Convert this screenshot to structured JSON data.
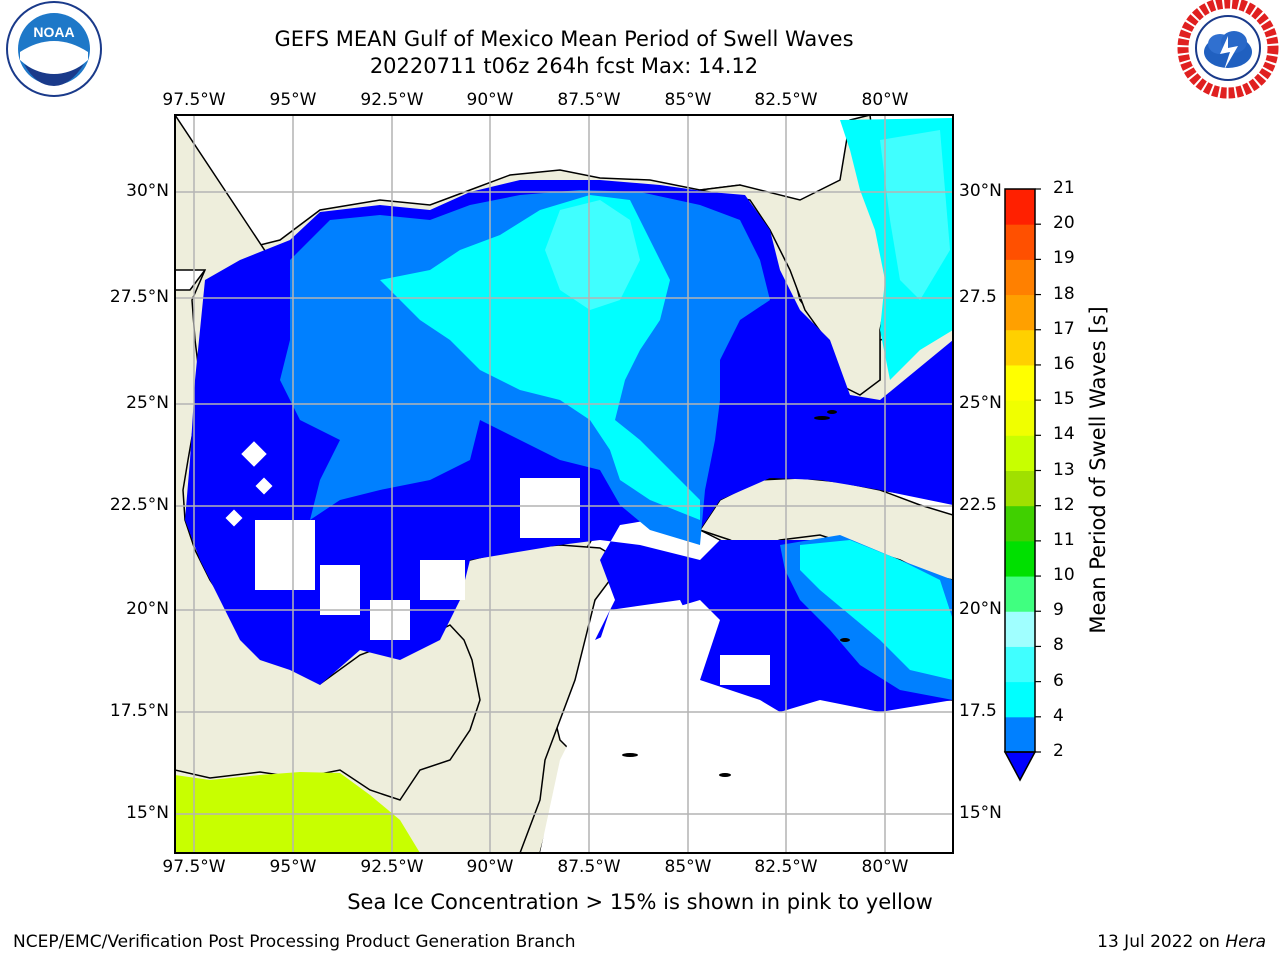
{
  "header": {
    "title_line1": "GEFS MEAN Gulf of Mexico Mean Period of Swell Waves",
    "title_line2": "20220711 t06z 264h fcst   Max: 14.12"
  },
  "logos": {
    "left": {
      "name": "noaa-logo",
      "text": "NOAA",
      "ring_text": "NATIONAL OCEANIC AND ATMOSPHERIC ADMINISTRATION · U.S. DEPARTMENT OF COMMERCE"
    },
    "right": {
      "name": "nws-logo",
      "ring_text": "NATIONAL WEATHER SERVICE"
    }
  },
  "map": {
    "lon_ticks": [
      "97.5°W",
      "95°W",
      "92.5°W",
      "90°W",
      "87.5°W",
      "85°W",
      "82.5°W",
      "80°W"
    ],
    "lat_ticks_left": [
      "30°N",
      "27.5°N",
      "25°N",
      "22.5°N",
      "20°N",
      "17.5°N",
      "15°N"
    ],
    "lat_ticks_right": [
      "30°N",
      "27.5",
      "25°N",
      "22.5",
      "20°N",
      "17.5",
      "15°N"
    ],
    "grid": true,
    "colors": {
      "land": "#eeeedc",
      "ocean_missing": "#ffffff",
      "grid": "#b4b4b4"
    }
  },
  "colorbar": {
    "label": "Mean Period of Swell Waves [s]",
    "ticks": [
      "2",
      "4",
      "6",
      "8",
      "9",
      "10",
      "11",
      "12",
      "13",
      "14",
      "15",
      "16",
      "17",
      "18",
      "19",
      "20",
      "21"
    ],
    "colors": [
      "#0000ff",
      "#0080ff",
      "#00ffff",
      "#40ffff",
      "#a0ffff",
      "#40ff80",
      "#00e000",
      "#40d000",
      "#a0e000",
      "#c8ff00",
      "#f0ff00",
      "#ffff00",
      "#ffd000",
      "#ffa000",
      "#ff8000",
      "#ff5000",
      "#ff2000",
      "#ff0000"
    ],
    "extend": "min"
  },
  "footer": {
    "note": "Sea Ice Concentration > 15% is shown in pink to yellow",
    "credit_left": "NCEP/EMC/Verification Post Processing Product Generation Branch",
    "credit_right_prefix": "13 Jul 2022 on ",
    "credit_right_host": "Hera"
  }
}
